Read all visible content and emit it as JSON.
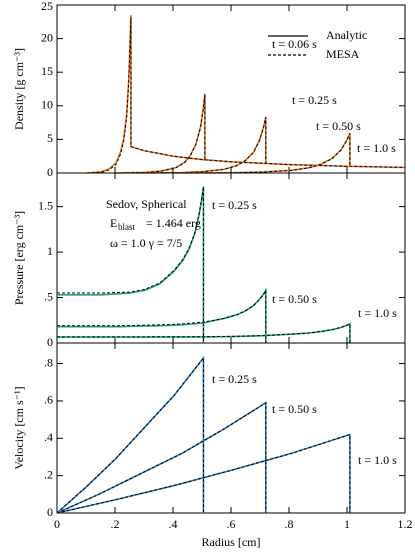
{
  "chart_data": [
    {
      "type": "line",
      "ylabel": "Density [g cm⁻³]",
      "ylim": [
        0,
        25
      ],
      "yticks": [
        0,
        5,
        10,
        15,
        20,
        25
      ],
      "xlim": [
        0,
        1.2
      ],
      "xticks": [
        0,
        {
          "value": 0.2,
          "label": ".2"
        },
        {
          "value": 0.4,
          "label": ".4"
        },
        {
          "value": 0.6,
          "label": ".6"
        },
        {
          "value": 0.8,
          "label": ".8"
        },
        1,
        {
          "value": 1.2,
          "label": "1.2"
        }
      ],
      "legend": [
        "Analytic",
        "MESA"
      ],
      "colors": {
        "analytic": "#e8782a",
        "mesa": "#000000"
      },
      "annotations": [],
      "curves": [
        {
          "label": "t = 0.06 s",
          "x": [
            0.102,
            0.153,
            0.179,
            0.204,
            0.219,
            0.23,
            0.24,
            0.247,
            0.252,
            0.255,
            0.255,
            0.3,
            0.4,
            0.5,
            0.6,
            0.8,
            1.0,
            1.2
          ],
          "analytic": [
            0,
            0.2,
            0.59,
            1.57,
            3.14,
            5.1,
            8.63,
            13.7,
            19.6,
            23.5,
            3.92,
            3.33,
            2.5,
            2,
            1.67,
            1.25,
            1,
            0.83
          ],
          "mesa": [
            0,
            0.1,
            0.45,
            1.3,
            2.8,
            4.8,
            8.2,
            13.2,
            19.2,
            23.2,
            3.92,
            3.33,
            2.5,
            2,
            1.67,
            1.25,
            1,
            0.83
          ]
        },
        {
          "label": "t = 0.25 s",
          "x": [
            0.204,
            0.306,
            0.357,
            0.408,
            0.439,
            0.459,
            0.479,
            0.495,
            0.505,
            0.51,
            0.51
          ],
          "analytic": [
            0,
            0.1,
            0.29,
            0.78,
            1.57,
            2.55,
            4.31,
            6.86,
            9.8,
            11.8,
            1.96
          ],
          "mesa": [
            0,
            0.08,
            0.25,
            0.72,
            1.5,
            2.5,
            4.25,
            6.8,
            9.7,
            11.7,
            1.96
          ]
        },
        {
          "label": "t = 0.50 s",
          "x": [
            0.288,
            0.432,
            0.504,
            0.576,
            0.619,
            0.648,
            0.677,
            0.698,
            0.713,
            0.72,
            0.72
          ],
          "analytic": [
            0,
            0.07,
            0.21,
            0.56,
            1.11,
            1.81,
            3.06,
            4.86,
            6.94,
            8.33,
            1.39
          ],
          "mesa": [
            0,
            0.06,
            0.19,
            0.53,
            1.08,
            1.78,
            3.02,
            4.82,
            6.9,
            8.3,
            1.39
          ]
        },
        {
          "label": "t = 1.0 s",
          "x": [
            0.404,
            0.606,
            0.707,
            0.808,
            0.869,
            0.909,
            0.949,
            0.98,
            1.0,
            1.01,
            1.01
          ],
          "analytic": [
            0,
            0.05,
            0.15,
            0.4,
            0.79,
            1.29,
            2.18,
            3.47,
            4.95,
            5.94,
            0.99
          ],
          "mesa": [
            0,
            0.04,
            0.14,
            0.38,
            0.77,
            1.27,
            2.15,
            3.44,
            4.9,
            5.9,
            0.99
          ]
        }
      ]
    },
    {
      "type": "line",
      "ylabel": "Pressure [erg cm⁻³]",
      "ylim": [
        0,
        1.87
      ],
      "yticks": [
        0,
        {
          "value": 0.5,
          "label": ".5"
        },
        1,
        1.5
      ],
      "xlim": [
        0,
        1.2
      ],
      "xticks": [
        0,
        {
          "value": 0.2,
          "label": ".2"
        },
        {
          "value": 0.4,
          "label": ".4"
        },
        {
          "value": 0.6,
          "label": ".6"
        },
        {
          "value": 0.8,
          "label": ".8"
        },
        1,
        {
          "value": 1.2,
          "label": "1.2"
        }
      ],
      "colors": {
        "analytic": "#1fa07a",
        "mesa": "#000000"
      },
      "annotations": [
        "Sedov, Spherical",
        "E",
        "blast",
        "= 1.464 erg",
        "ω = 1.0    γ = 7/5"
      ],
      "curves": [
        {
          "label": "t = 0.25 s",
          "x": [
            0,
            0.152,
            0.253,
            0.303,
            0.354,
            0.404,
            0.434,
            0.455,
            0.475,
            0.49,
            0.5,
            0.505,
            0.505
          ],
          "analytic": [
            0.53,
            0.53,
            0.55,
            0.58,
            0.65,
            0.79,
            0.91,
            1.03,
            1.2,
            1.41,
            1.6,
            1.72,
            0
          ],
          "mesa": [
            0.55,
            0.55,
            0.56,
            0.59,
            0.66,
            0.8,
            0.92,
            1.04,
            1.21,
            1.42,
            1.61,
            1.72,
            0
          ]
        },
        {
          "label": "t = 0.50 s",
          "x": [
            0,
            0.216,
            0.36,
            0.432,
            0.504,
            0.576,
            0.619,
            0.648,
            0.677,
            0.698,
            0.713,
            0.72,
            0.72
          ],
          "analytic": [
            0.18,
            0.18,
            0.19,
            0.2,
            0.22,
            0.27,
            0.31,
            0.35,
            0.41,
            0.48,
            0.54,
            0.58,
            0
          ],
          "mesa": [
            0.19,
            0.19,
            0.2,
            0.21,
            0.23,
            0.27,
            0.31,
            0.35,
            0.41,
            0.48,
            0.54,
            0.58,
            0
          ]
        },
        {
          "label": "t = 1.0 s",
          "x": [
            0,
            0.303,
            0.505,
            0.606,
            0.707,
            0.808,
            0.869,
            0.909,
            0.949,
            0.98,
            1.0,
            1.01,
            1.01
          ],
          "analytic": [
            0.065,
            0.065,
            0.067,
            0.071,
            0.08,
            0.097,
            0.11,
            0.126,
            0.147,
            0.172,
            0.195,
            0.21,
            0
          ],
          "mesa": [
            0.068,
            0.068,
            0.069,
            0.073,
            0.081,
            0.098,
            0.11,
            0.126,
            0.147,
            0.172,
            0.195,
            0.21,
            0
          ]
        }
      ]
    },
    {
      "type": "line",
      "ylabel": "Velocity [cm s⁻¹]",
      "xlabel": "Radius [cm]",
      "ylim": [
        0,
        0.91
      ],
      "yticks": [
        0,
        {
          "value": 0.2,
          "label": ".2"
        },
        {
          "value": 0.4,
          "label": ".4"
        },
        {
          "value": 0.6,
          "label": ".6"
        },
        {
          "value": 0.8,
          "label": ".8"
        }
      ],
      "xlim": [
        0,
        1.2
      ],
      "xticks": [
        0,
        {
          "value": 0.2,
          "label": ".2"
        },
        {
          "value": 0.4,
          "label": ".4"
        },
        {
          "value": 0.6,
          "label": ".6"
        },
        {
          "value": 0.8,
          "label": ".8"
        },
        1,
        {
          "value": 1.2,
          "label": "1.2"
        }
      ],
      "colors": {
        "analytic": "#2f7fc1",
        "mesa": "#000000"
      },
      "annotations": [],
      "curves": [
        {
          "label": "t = 0.25 s",
          "x": [
            0,
            0.101,
            0.202,
            0.303,
            0.404,
            0.505,
            0.505
          ],
          "analytic": [
            0,
            0.14,
            0.29,
            0.46,
            0.63,
            0.83,
            0
          ],
          "mesa": [
            0,
            0.14,
            0.29,
            0.46,
            0.63,
            0.83,
            0
          ]
        },
        {
          "label": "t = 0.50 s",
          "x": [
            0,
            0.144,
            0.288,
            0.432,
            0.576,
            0.72,
            0.72
          ],
          "analytic": [
            0,
            0.1,
            0.21,
            0.32,
            0.45,
            0.59,
            0
          ],
          "mesa": [
            0,
            0.1,
            0.21,
            0.32,
            0.45,
            0.59,
            0
          ]
        },
        {
          "label": "t = 1.0 s",
          "x": [
            0,
            0.202,
            0.404,
            0.606,
            0.808,
            1.01,
            1.01
          ],
          "analytic": [
            0,
            0.071,
            0.147,
            0.231,
            0.319,
            0.42,
            0
          ],
          "mesa": [
            0,
            0.071,
            0.147,
            0.231,
            0.319,
            0.42,
            0
          ]
        }
      ]
    }
  ]
}
